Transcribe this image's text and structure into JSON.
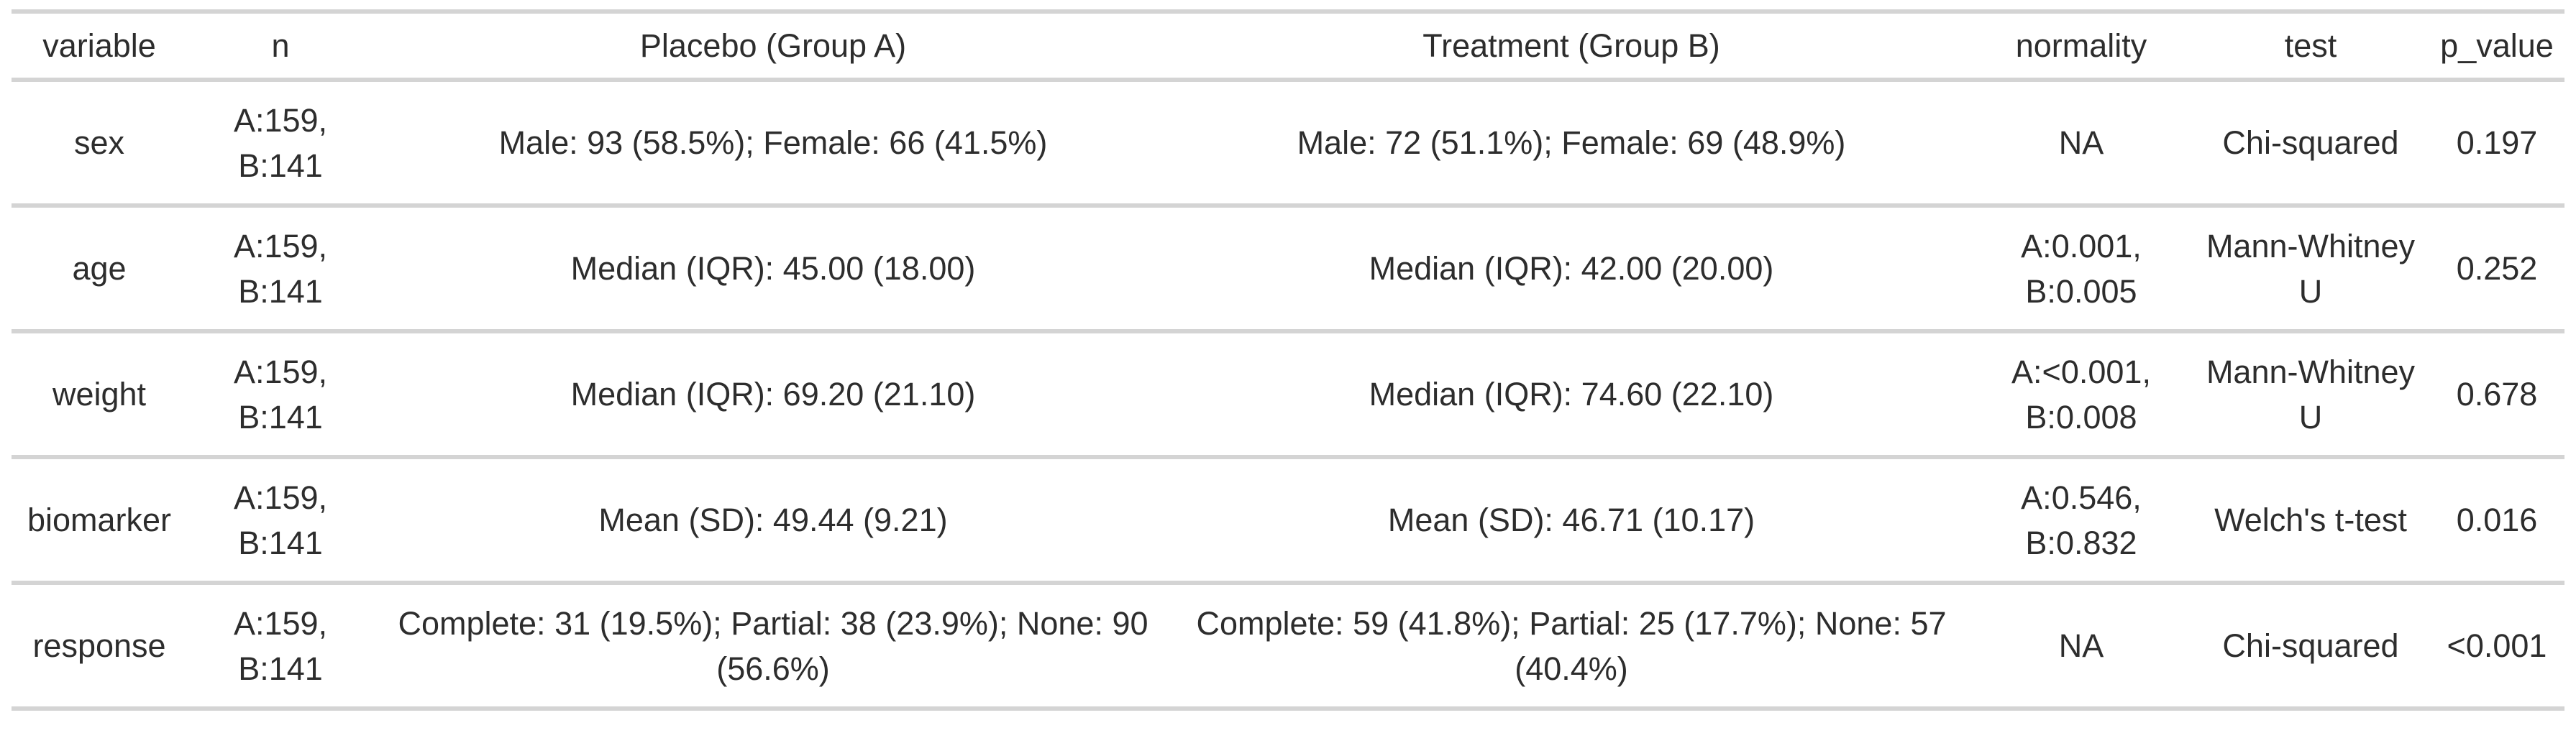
{
  "colors": {
    "background": "#ffffff",
    "rule": "#d4d4d4",
    "text": "#2d2d2d"
  },
  "chart_data": {
    "type": "table",
    "columns": [
      "variable",
      "n",
      "Placebo (Group A)",
      "Treatment (Group B)",
      "normality",
      "test",
      "p_value"
    ],
    "rows": [
      [
        "sex",
        "A:159, B:141",
        "Male: 93 (58.5%); Female: 66 (41.5%)",
        "Male: 72 (51.1%); Female: 69 (48.9%)",
        "NA",
        "Chi-squared",
        "0.197"
      ],
      [
        "age",
        "A:159, B:141",
        "Median (IQR): 45.00 (18.00)",
        "Median (IQR): 42.00 (20.00)",
        "A:0.001, B:0.005",
        "Mann-Whitney U",
        "0.252"
      ],
      [
        "weight",
        "A:159, B:141",
        "Median (IQR): 69.20 (21.10)",
        "Median (IQR): 74.60 (22.10)",
        "A:<0.001, B:0.008",
        "Mann-Whitney U",
        "0.678"
      ],
      [
        "biomarker",
        "A:159, B:141",
        "Mean (SD): 49.44 (9.21)",
        "Mean (SD): 46.71 (10.17)",
        "A:0.546, B:0.832",
        "Welch's t-test",
        "0.016"
      ],
      [
        "response",
        "A:159, B:141",
        "Complete: 31 (19.5%); Partial: 38 (23.9%); None: 90 (56.6%)",
        "Complete: 59 (41.8%); Partial: 25 (17.7%); None: 57 (40.4%)",
        "NA",
        "Chi-squared",
        "<0.001"
      ]
    ],
    "layout": {
      "header_position": "top",
      "cell_alignment": "center",
      "gridlines": "horizontal-only"
    }
  }
}
